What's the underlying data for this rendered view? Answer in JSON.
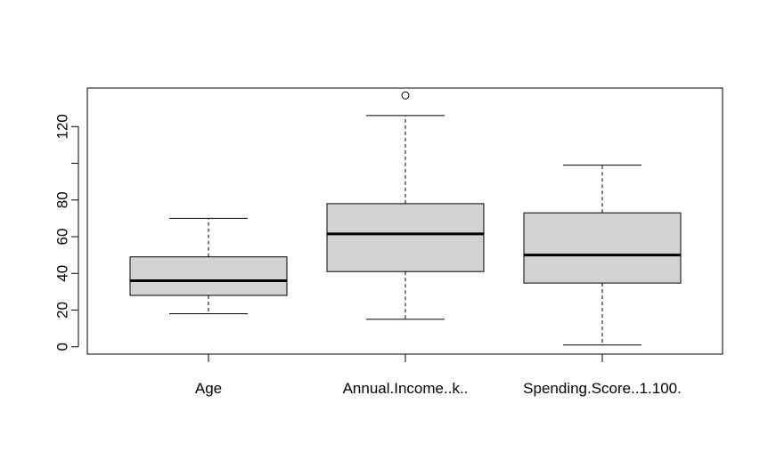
{
  "chart_data": {
    "type": "boxplot",
    "title": "",
    "xlabel": "",
    "ylabel": "",
    "ylim": [
      -4,
      141
    ],
    "y_ticks": [
      0,
      20,
      40,
      60,
      80,
      120
    ],
    "y_tick_marks": [
      0,
      20,
      40,
      60,
      80,
      100,
      120
    ],
    "grid": false,
    "legend": "none",
    "box_fill": "#d3d3d3",
    "categories": [
      "Age",
      "Annual.Income..k..",
      "Spending.Score..1.100."
    ],
    "boxes": [
      {
        "category": "Age",
        "whisker_low": 18,
        "q1": 28,
        "median": 36,
        "q3": 49,
        "whisker_high": 70,
        "outliers": []
      },
      {
        "category": "Annual.Income..k..",
        "whisker_low": 15,
        "q1": 41,
        "median": 61.5,
        "q3": 78,
        "whisker_high": 126,
        "outliers": [
          137
        ]
      },
      {
        "category": "Spending.Score..1.100.",
        "whisker_low": 1,
        "q1": 34.75,
        "median": 50,
        "q3": 73,
        "whisker_high": 99,
        "outliers": []
      }
    ]
  }
}
